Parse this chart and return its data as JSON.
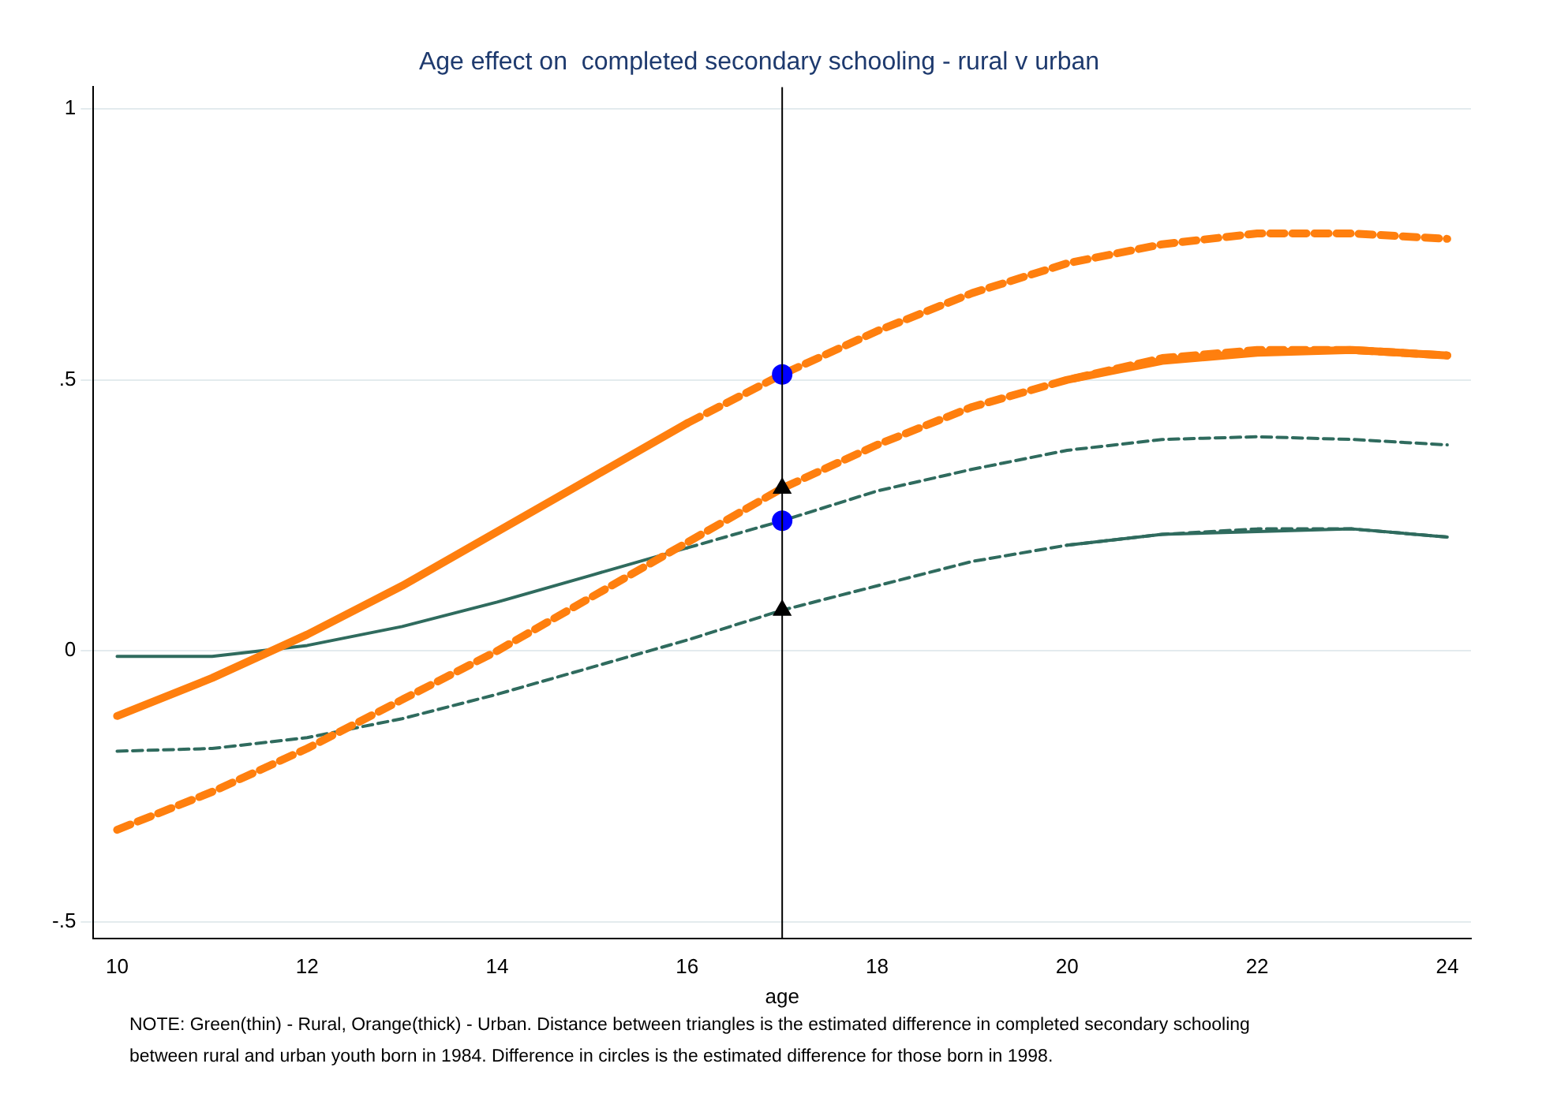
{
  "chart_data": {
    "type": "line",
    "title": "Age effect on  completed secondary schooling - rural v urban",
    "xlabel": "age",
    "xlim": [
      9.75,
      24.25
    ],
    "xticks": [
      10,
      12,
      14,
      16,
      18,
      20,
      22,
      24
    ],
    "ylim": [
      -0.53,
      1.04
    ],
    "yticks": [
      {
        "value": -0.5,
        "label": "-.5"
      },
      0,
      {
        "value": 0.5,
        "label": ".5"
      },
      1
    ],
    "grid": "y",
    "legend": false,
    "series": [
      {
        "color": "#ff7f0e",
        "line_style": "solid",
        "x": [
          10,
          11,
          12,
          13,
          14,
          15,
          16,
          17,
          18,
          19,
          20,
          21,
          22,
          23,
          24
        ],
        "values": [
          -0.12,
          -0.05,
          0.03,
          0.12,
          0.22,
          0.32,
          0.42,
          null,
          null,
          null,
          0.5,
          0.535,
          0.55,
          0.555,
          0.545
        ]
      },
      {
        "color": "#ff7f0e",
        "line_style": "dashed",
        "x": [
          16,
          17,
          18,
          19,
          20,
          21,
          22,
          23,
          24
        ],
        "values": [
          0.42,
          0.51,
          0.59,
          0.66,
          0.715,
          0.75,
          0.77,
          0.77,
          0.76
        ]
      },
      {
        "color": "#ff7f0e",
        "line_style": "dashed",
        "x": [
          10,
          11,
          12,
          13,
          14,
          15,
          16,
          17,
          18,
          19,
          20,
          21,
          22,
          23,
          24
        ],
        "values": [
          -0.33,
          -0.26,
          -0.18,
          -0.09,
          0.0,
          0.1,
          0.2,
          0.3,
          0.38,
          0.45,
          0.5,
          0.54,
          0.555,
          0.555,
          0.545
        ]
      },
      {
        "color": "#2f6b5e",
        "line_style": "solid",
        "x": [
          10,
          11,
          12,
          13,
          14,
          15,
          16,
          17,
          18,
          19,
          20,
          21,
          22,
          23,
          24
        ],
        "values": [
          -0.01,
          -0.01,
          0.01,
          0.045,
          0.09,
          0.14,
          0.19,
          null,
          null,
          null,
          0.195,
          0.215,
          0.22,
          0.225,
          0.21
        ]
      },
      {
        "color": "#2f6b5e",
        "line_style": "dashed",
        "x": [
          16,
          17,
          18,
          19,
          20,
          21,
          22,
          23,
          24
        ],
        "values": [
          0.19,
          0.24,
          0.295,
          0.335,
          0.37,
          0.39,
          0.395,
          0.39,
          0.38
        ]
      },
      {
        "color": "#2f6b5e",
        "line_style": "dashed",
        "x": [
          10,
          11,
          12,
          13,
          14,
          15,
          16,
          17,
          18,
          19,
          20,
          21,
          22,
          23,
          24
        ],
        "values": [
          -0.185,
          -0.18,
          -0.16,
          -0.125,
          -0.08,
          -0.03,
          0.02,
          0.075,
          0.12,
          0.165,
          0.195,
          0.215,
          0.225,
          0.225,
          0.21
        ]
      },
      {
        "type": "scatter",
        "color": "#0000ff",
        "marker": "circle",
        "x": [
          17,
          17
        ],
        "values": [
          0.51,
          0.24
        ]
      },
      {
        "type": "scatter",
        "color": "#000000",
        "marker": "triangle",
        "x": [
          17,
          17
        ],
        "values": [
          0.3,
          0.075
        ]
      }
    ],
    "ref_lines": [
      {
        "axis": "x",
        "value": 17,
        "color": "#000000"
      }
    ],
    "annotations": [
      "NOTE: Green(thin) - Rural, Orange(thick) - Urban. Distance between triangles is the estimated difference in completed secondary schooling",
      "between rural and urban youth born in 1984. Difference in circles is the estimated difference for those born in 1998."
    ]
  }
}
